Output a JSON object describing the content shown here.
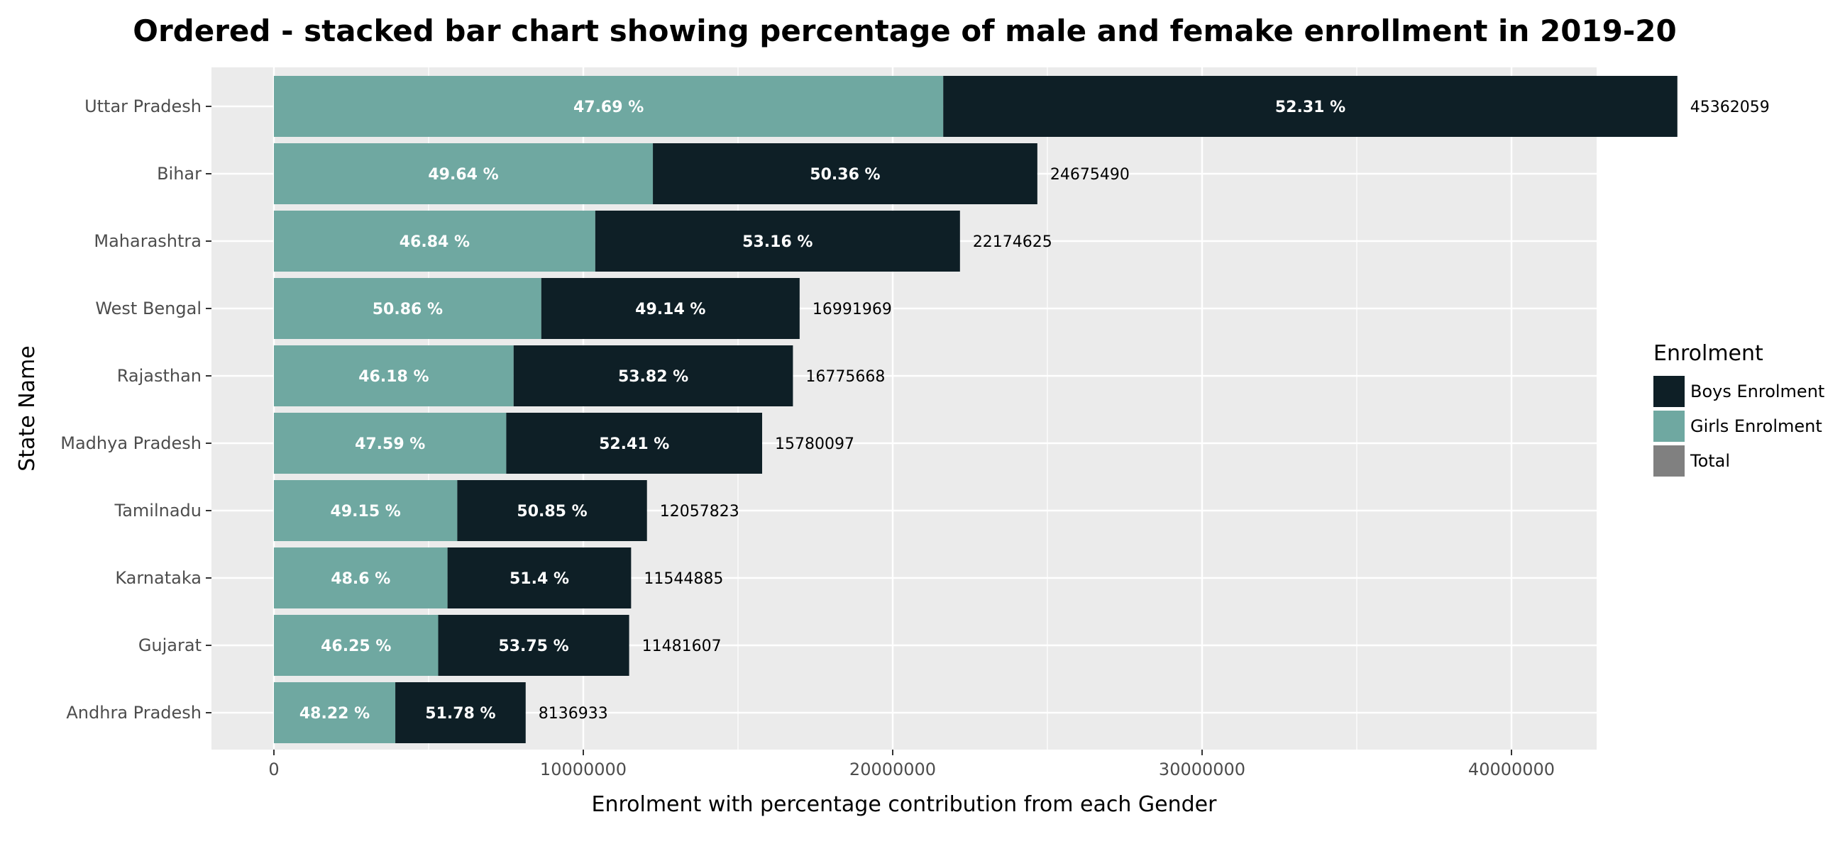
{
  "chart_data": {
    "type": "bar",
    "orientation": "horizontal",
    "stacked": true,
    "title": "Ordered - stacked bar chart showing percentage of male and femake enrollment in 2019-20",
    "xlabel": "Enrolment with percentage contribution from each Gender",
    "ylabel": "State Name",
    "xlim": [
      0,
      48000000
    ],
    "x_ticks": [
      0,
      10000000,
      20000000,
      30000000,
      40000000
    ],
    "x_tick_labels": [
      "0",
      "10000000",
      "20000000",
      "30000000",
      "40000000"
    ],
    "grid": true,
    "legend_position": "right",
    "legend": {
      "title": "Enrolment",
      "entries": [
        {
          "name": "Boys Enrolment",
          "color": "#0e1f26"
        },
        {
          "name": "Girls Enrolment",
          "color": "#6fa8a1"
        },
        {
          "name": "Total",
          "color": "#808080"
        }
      ]
    },
    "categories": [
      "Uttar Pradesh",
      "Bihar",
      "Maharashtra",
      "West Bengal",
      "Rajasthan",
      "Madhya Pradesh",
      "Tamilnadu",
      "Karnataka",
      "Gujarat",
      "Andhra Pradesh"
    ],
    "totals": [
      45362059,
      24675490,
      22174625,
      16991969,
      16775668,
      15780097,
      12057823,
      11544885,
      11481607,
      8136933
    ],
    "total_labels": [
      "45362059",
      "24675490",
      "22174625",
      "16991969",
      "16775668",
      "15780097",
      "12057823",
      "11544885",
      "11481607",
      "8136933"
    ],
    "series": [
      {
        "name": "Girls Enrolment",
        "color": "#6fa8a1",
        "percent": [
          47.69,
          49.64,
          46.84,
          50.86,
          46.18,
          47.59,
          49.15,
          48.6,
          46.25,
          48.22
        ],
        "percent_labels": [
          "47.69 %",
          "49.64 %",
          "46.84 %",
          "50.86 %",
          "46.18 %",
          "47.59 %",
          "49.15 %",
          "48.6 %",
          "46.25 %",
          "48.22 %"
        ]
      },
      {
        "name": "Boys Enrolment",
        "color": "#0e1f26",
        "percent": [
          52.31,
          50.36,
          53.16,
          49.14,
          53.82,
          52.41,
          50.85,
          51.4,
          53.75,
          51.78
        ],
        "percent_labels": [
          "52.31 %",
          "50.36 %",
          "53.16 %",
          "49.14 %",
          "53.82 %",
          "52.41 %",
          "50.85 %",
          "51.4 %",
          "53.75 %",
          "51.78 %"
        ]
      }
    ],
    "colors": {
      "panel_background": "#ebebeb",
      "grid": "#ffffff"
    }
  }
}
